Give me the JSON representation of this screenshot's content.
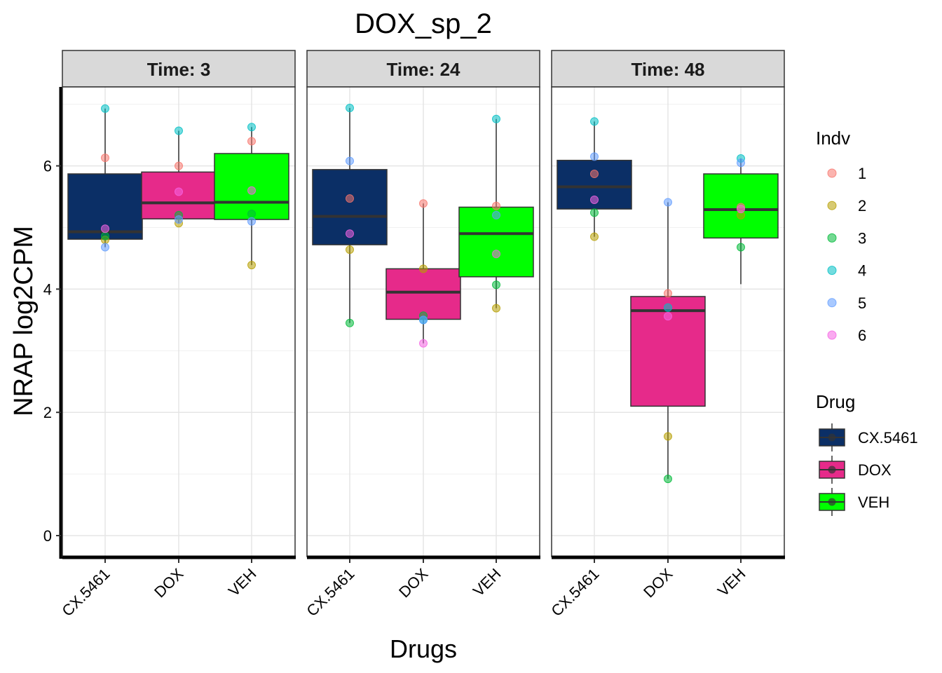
{
  "chart_data": {
    "type": "box",
    "title": "DOX_sp_2",
    "xlabel": "Drugs",
    "ylabel": "NRAP  log2CPM",
    "ylim": [
      -0.3,
      7.3
    ],
    "yticks": [
      0,
      2,
      4,
      6
    ],
    "grid": true,
    "categories": [
      "CX.5461",
      "DOX",
      "VEH"
    ],
    "panels": [
      {
        "label": "Time: 3",
        "groups": [
          {
            "drug": "CX.5461",
            "q1": 4.81,
            "median": 4.93,
            "q3": 5.87,
            "whisker_low": 4.68,
            "whisker_high": 6.93,
            "points": [
              {
                "indv": "1",
                "y": 6.13
              },
              {
                "indv": "2",
                "y": 4.8
              },
              {
                "indv": "3",
                "y": 4.86
              },
              {
                "indv": "4",
                "y": 6.93
              },
              {
                "indv": "5",
                "y": 4.68
              },
              {
                "indv": "6",
                "y": 4.98
              }
            ]
          },
          {
            "drug": "DOX",
            "q1": 5.14,
            "median": 5.4,
            "q3": 5.9,
            "whisker_low": 5.07,
            "whisker_high": 6.57,
            "points": [
              {
                "indv": "1",
                "y": 6.0
              },
              {
                "indv": "2",
                "y": 5.07
              },
              {
                "indv": "3",
                "y": 5.2
              },
              {
                "indv": "4",
                "y": 6.57
              },
              {
                "indv": "5",
                "y": 5.13
              },
              {
                "indv": "6",
                "y": 5.58
              }
            ]
          },
          {
            "drug": "VEH",
            "q1": 5.13,
            "median": 5.41,
            "q3": 6.2,
            "whisker_low": 4.39,
            "whisker_high": 6.63,
            "points": [
              {
                "indv": "1",
                "y": 6.4
              },
              {
                "indv": "2",
                "y": 4.39
              },
              {
                "indv": "3",
                "y": 5.22
              },
              {
                "indv": "4",
                "y": 6.63
              },
              {
                "indv": "5",
                "y": 5.1
              },
              {
                "indv": "6",
                "y": 5.6
              }
            ]
          }
        ]
      },
      {
        "label": "Time: 24",
        "groups": [
          {
            "drug": "CX.5461",
            "q1": 4.72,
            "median": 5.18,
            "q3": 5.94,
            "whisker_low": 3.45,
            "whisker_high": 6.94,
            "points": [
              {
                "indv": "1",
                "y": 5.47
              },
              {
                "indv": "2",
                "y": 4.64
              },
              {
                "indv": "3",
                "y": 3.45
              },
              {
                "indv": "4",
                "y": 6.94
              },
              {
                "indv": "5",
                "y": 6.08
              },
              {
                "indv": "6",
                "y": 4.9
              }
            ]
          },
          {
            "drug": "DOX",
            "q1": 3.51,
            "median": 3.95,
            "q3": 4.33,
            "whisker_low": 3.12,
            "whisker_high": 5.39,
            "points": [
              {
                "indv": "1",
                "y": 5.39
              },
              {
                "indv": "2",
                "y": 4.33
              },
              {
                "indv": "3",
                "y": 3.57
              },
              {
                "indv": "4",
                "y": 3.5
              },
              {
                "indv": "5",
                "y": 3.5
              },
              {
                "indv": "6",
                "y": 3.12
              }
            ]
          },
          {
            "drug": "VEH",
            "q1": 4.2,
            "median": 4.9,
            "q3": 5.33,
            "whisker_low": 3.69,
            "whisker_high": 6.76,
            "points": [
              {
                "indv": "1",
                "y": 5.35
              },
              {
                "indv": "2",
                "y": 3.69
              },
              {
                "indv": "3",
                "y": 4.07
              },
              {
                "indv": "4",
                "y": 6.76
              },
              {
                "indv": "5",
                "y": 5.2
              },
              {
                "indv": "6",
                "y": 4.57
              }
            ]
          }
        ]
      },
      {
        "label": "Time: 48",
        "groups": [
          {
            "drug": "CX.5461",
            "q1": 5.3,
            "median": 5.66,
            "q3": 6.09,
            "whisker_low": 4.85,
            "whisker_high": 6.72,
            "points": [
              {
                "indv": "1",
                "y": 5.87
              },
              {
                "indv": "2",
                "y": 4.85
              },
              {
                "indv": "3",
                "y": 5.24
              },
              {
                "indv": "4",
                "y": 6.72
              },
              {
                "indv": "5",
                "y": 6.15
              },
              {
                "indv": "6",
                "y": 5.45
              }
            ]
          },
          {
            "drug": "DOX",
            "q1": 2.1,
            "median": 3.65,
            "q3": 3.88,
            "whisker_low": 0.92,
            "whisker_high": 5.41,
            "points": [
              {
                "indv": "1",
                "y": 3.93
              },
              {
                "indv": "2",
                "y": 1.61
              },
              {
                "indv": "3",
                "y": 0.92
              },
              {
                "indv": "4",
                "y": 3.7
              },
              {
                "indv": "5",
                "y": 5.41
              },
              {
                "indv": "6",
                "y": 3.56
              }
            ]
          },
          {
            "drug": "VEH",
            "q1": 4.83,
            "median": 5.29,
            "q3": 5.87,
            "whisker_low": 4.08,
            "whisker_high": 6.12,
            "points": [
              {
                "indv": "1",
                "y": 5.33
              },
              {
                "indv": "2",
                "y": 5.2
              },
              {
                "indv": "3",
                "y": 4.68
              },
              {
                "indv": "4",
                "y": 6.12
              },
              {
                "indv": "5",
                "y": 6.05
              },
              {
                "indv": "6",
                "y": 5.3
              }
            ]
          }
        ]
      }
    ],
    "legend_indv": {
      "title": "Indv",
      "items": [
        {
          "label": "1",
          "color": "#F8766D"
        },
        {
          "label": "2",
          "color": "#B79F00"
        },
        {
          "label": "3",
          "color": "#00BA38"
        },
        {
          "label": "4",
          "color": "#00BFC4"
        },
        {
          "label": "5",
          "color": "#619CFF"
        },
        {
          "label": "6",
          "color": "#F564E3"
        }
      ]
    },
    "legend_drug": {
      "title": "Drug",
      "items": [
        {
          "label": "CX.5461",
          "color": "#0B2F66"
        },
        {
          "label": "DOX",
          "color": "#E62A8A"
        },
        {
          "label": "VEH",
          "color": "#00FF00"
        }
      ]
    },
    "legend_placement": "right"
  }
}
